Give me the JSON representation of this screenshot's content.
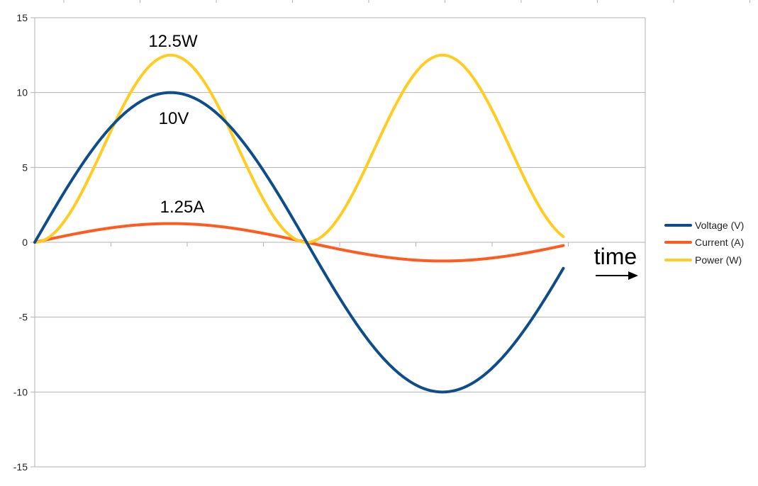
{
  "chart_data": {
    "type": "line",
    "title": "",
    "xlabel": "",
    "ylabel": "",
    "ylim": [
      -15,
      15
    ],
    "yticks": [
      15,
      10,
      5,
      0,
      -5,
      -10,
      -15
    ],
    "xlim": [
      0,
      360
    ],
    "x_end": 350,
    "grid": true,
    "legend_position": "right",
    "series": [
      {
        "name": "Voltage (V)",
        "color": "#0f4d8a",
        "amplitude": 10,
        "power": 1,
        "function": "sine",
        "values_at": {
          "0": 0,
          "90": 10,
          "180": 0,
          "270": -10,
          "350": -1.74
        }
      },
      {
        "name": "Current (A)",
        "color": "#ff5a1f",
        "amplitude": 1.25,
        "power": 1,
        "function": "sine",
        "values_at": {
          "0": 0,
          "90": 1.25,
          "180": 0,
          "270": -1.25,
          "350": -0.22
        }
      },
      {
        "name": "Power (W)",
        "color": "#ffcc22",
        "amplitude": 12.5,
        "power": 2,
        "function": "sine-squared",
        "values_at": {
          "0": 0,
          "90": 12.5,
          "180": 0,
          "270": 12.5,
          "350": 0.38
        }
      }
    ],
    "annotations": [
      {
        "text": "12.5W",
        "x": 90,
        "y": 12.5
      },
      {
        "text": "10V",
        "x": 90,
        "y": 10
      },
      {
        "text": "1.25A",
        "x": 90,
        "y": 1.25
      },
      {
        "text": "time",
        "x": 360,
        "y": 0
      }
    ]
  }
}
